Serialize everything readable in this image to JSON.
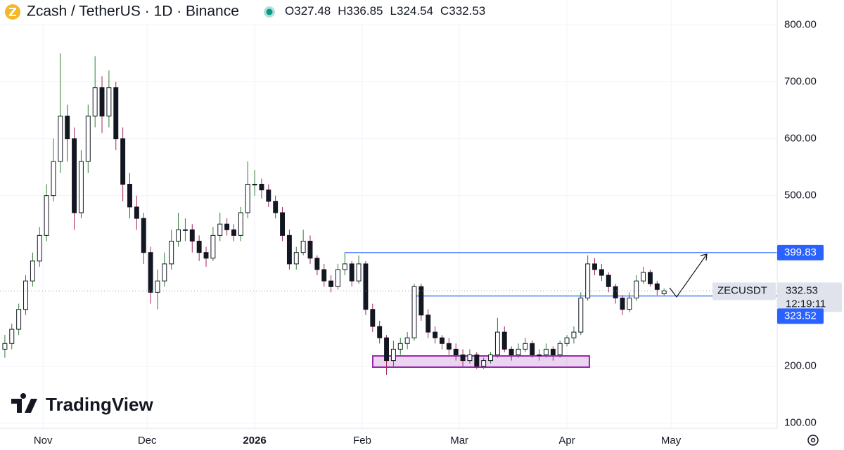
{
  "chart_data": {
    "type": "candlestick",
    "title": "Zcash / TetherUS · 1D · Binance",
    "ohlc_labels": [
      "O",
      "H",
      "L",
      "C"
    ],
    "ohlc": [
      327.48,
      336.85,
      324.54,
      332.53
    ],
    "symbol": "ZECUSDT",
    "last_price": 332.53,
    "countdown": "12:19:11",
    "watermark": "TradingView",
    "up_color": "#ffffff",
    "down_color": "#131722",
    "up_wick": "#2e7d32",
    "down_wick": "#a3245a",
    "ylim": [
      91,
      844
    ],
    "xlim": [
      -0.7,
      111.3
    ],
    "yticks": [
      {
        "value": 100,
        "label": "100.00"
      },
      {
        "value": 200,
        "label": "200.00"
      },
      {
        "value": 500,
        "label": "500.00"
      },
      {
        "value": 600,
        "label": "600.00"
      },
      {
        "value": 700,
        "label": "700.00"
      },
      {
        "value": 800,
        "label": "800.00"
      }
    ],
    "xticks": [
      {
        "value": 5.5,
        "label": "Nov"
      },
      {
        "value": 20.5,
        "label": "Dec"
      },
      {
        "value": 36,
        "label": "2026"
      },
      {
        "value": 51.5,
        "label": "Feb"
      },
      {
        "value": 65.5,
        "label": "Mar"
      },
      {
        "value": 81,
        "label": "Apr"
      },
      {
        "value": 96,
        "label": "May"
      }
    ],
    "levels": [
      {
        "value": 399.83,
        "color": "#2962ff"
      },
      {
        "value": 323.52,
        "color": "#2962ff"
      }
    ],
    "grid": true,
    "series": [
      {
        "name": "ZECUSDT",
        "values": [
          [
            230,
            255,
            215,
            240
          ],
          [
            240,
            275,
            230,
            265
          ],
          [
            265,
            310,
            255,
            300
          ],
          [
            300,
            360,
            290,
            350
          ],
          [
            350,
            400,
            340,
            385
          ],
          [
            385,
            445,
            375,
            430
          ],
          [
            430,
            520,
            420,
            500
          ],
          [
            500,
            600,
            490,
            560
          ],
          [
            560,
            750,
            540,
            640
          ],
          [
            640,
            660,
            560,
            600
          ],
          [
            600,
            620,
            440,
            470
          ],
          [
            470,
            580,
            460,
            560
          ],
          [
            560,
            660,
            540,
            640
          ],
          [
            640,
            745,
            620,
            690
          ],
          [
            690,
            710,
            610,
            640
          ],
          [
            640,
            720,
            620,
            690
          ],
          [
            690,
            700,
            580,
            600
          ],
          [
            600,
            620,
            490,
            520
          ],
          [
            520,
            540,
            460,
            480
          ],
          [
            480,
            500,
            440,
            460
          ],
          [
            460,
            470,
            380,
            400
          ],
          [
            400,
            410,
            310,
            330
          ],
          [
            330,
            370,
            300,
            350
          ],
          [
            350,
            400,
            340,
            380
          ],
          [
            380,
            440,
            370,
            420
          ],
          [
            420,
            470,
            410,
            440
          ],
          [
            440,
            460,
            420,
            440
          ],
          [
            440,
            450,
            400,
            420
          ],
          [
            420,
            430,
            385,
            400
          ],
          [
            400,
            410,
            375,
            390
          ],
          [
            390,
            445,
            385,
            430
          ],
          [
            430,
            470,
            420,
            450
          ],
          [
            450,
            460,
            430,
            440
          ],
          [
            440,
            450,
            420,
            430
          ],
          [
            430,
            480,
            420,
            470
          ],
          [
            470,
            560,
            460,
            520
          ],
          [
            520,
            545,
            500,
            520
          ],
          [
            520,
            530,
            495,
            510
          ],
          [
            510,
            520,
            480,
            490
          ],
          [
            490,
            500,
            460,
            470
          ],
          [
            470,
            480,
            420,
            430
          ],
          [
            430,
            440,
            370,
            380
          ],
          [
            380,
            410,
            370,
            400
          ],
          [
            400,
            440,
            395,
            420
          ],
          [
            420,
            430,
            380,
            390
          ],
          [
            390,
            395,
            360,
            370
          ],
          [
            370,
            380,
            340,
            350
          ],
          [
            350,
            360,
            330,
            340
          ],
          [
            340,
            380,
            335,
            370
          ],
          [
            370,
            400,
            360,
            380
          ],
          [
            380,
            385,
            340,
            350
          ],
          [
            350,
            395,
            345,
            380
          ],
          [
            380,
            385,
            290,
            300
          ],
          [
            300,
            310,
            260,
            270
          ],
          [
            270,
            280,
            240,
            250
          ],
          [
            250,
            255,
            185,
            210
          ],
          [
            210,
            245,
            200,
            230
          ],
          [
            230,
            250,
            220,
            240
          ],
          [
            240,
            260,
            230,
            250
          ],
          [
            250,
            345,
            245,
            340
          ],
          [
            340,
            345,
            280,
            290
          ],
          [
            290,
            300,
            250,
            260
          ],
          [
            260,
            270,
            240,
            250
          ],
          [
            250,
            255,
            230,
            240
          ],
          [
            240,
            250,
            220,
            230
          ],
          [
            230,
            240,
            210,
            220
          ],
          [
            220,
            230,
            200,
            210
          ],
          [
            210,
            230,
            205,
            220
          ],
          [
            220,
            225,
            195,
            200
          ],
          [
            200,
            215,
            195,
            210
          ],
          [
            210,
            225,
            205,
            220
          ],
          [
            220,
            285,
            215,
            260
          ],
          [
            260,
            270,
            225,
            230
          ],
          [
            230,
            235,
            210,
            220
          ],
          [
            220,
            240,
            215,
            230
          ],
          [
            230,
            250,
            225,
            240
          ],
          [
            240,
            245,
            215,
            220
          ],
          [
            220,
            230,
            210,
            220
          ],
          [
            220,
            240,
            215,
            230
          ],
          [
            230,
            235,
            210,
            220
          ],
          [
            220,
            245,
            215,
            240
          ],
          [
            240,
            255,
            235,
            250
          ],
          [
            250,
            270,
            240,
            260
          ],
          [
            260,
            330,
            255,
            320
          ],
          [
            320,
            395,
            315,
            380
          ],
          [
            380,
            390,
            360,
            370
          ],
          [
            370,
            380,
            350,
            360
          ],
          [
            360,
            365,
            330,
            340
          ],
          [
            340,
            345,
            310,
            320
          ],
          [
            320,
            325,
            290,
            300
          ],
          [
            300,
            330,
            295,
            320
          ],
          [
            320,
            360,
            315,
            350
          ],
          [
            350,
            375,
            345,
            365
          ],
          [
            365,
            370,
            340,
            345
          ],
          [
            345,
            350,
            325,
            335
          ],
          [
            327.48,
            336.85,
            324.54,
            332.53
          ]
        ]
      }
    ]
  }
}
